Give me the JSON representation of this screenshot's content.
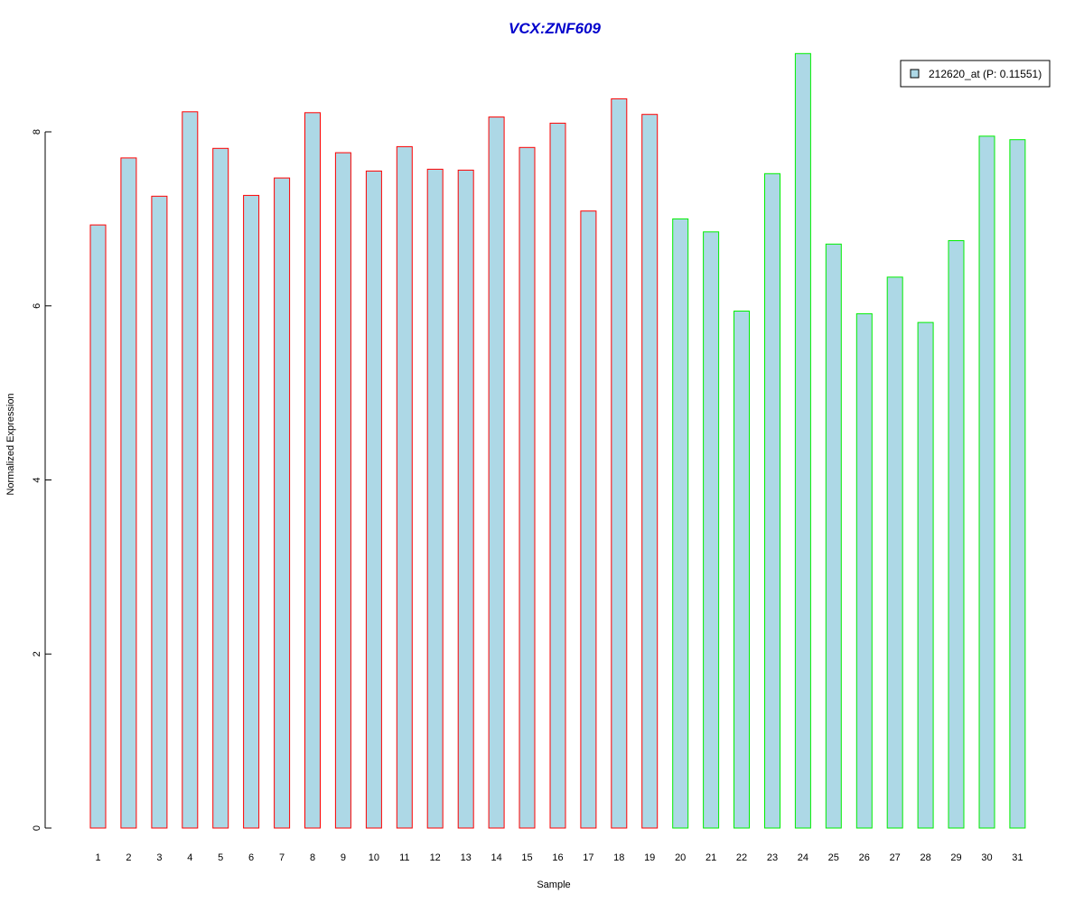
{
  "chart_data": {
    "type": "bar",
    "title": "VCX:ZNF609",
    "xlabel": "Sample",
    "ylabel": "Normalized Expression",
    "categories": [
      "1",
      "2",
      "3",
      "4",
      "5",
      "6",
      "7",
      "8",
      "9",
      "10",
      "11",
      "12",
      "13",
      "14",
      "15",
      "16",
      "17",
      "18",
      "19",
      "20",
      "21",
      "22",
      "23",
      "24",
      "25",
      "26",
      "27",
      "28",
      "29",
      "30",
      "31"
    ],
    "series": [
      {
        "name": "212620_at (P: 0.11551)",
        "values": [
          6.93,
          7.7,
          7.26,
          8.23,
          7.81,
          7.27,
          7.47,
          8.22,
          7.76,
          7.55,
          7.83,
          7.57,
          7.56,
          8.17,
          7.82,
          8.1,
          7.09,
          8.38,
          8.2,
          7.0,
          6.85,
          5.94,
          7.52,
          8.9,
          6.71,
          5.91,
          6.33,
          5.81,
          6.75,
          7.95,
          7.91
        ]
      }
    ],
    "yticks": [
      0,
      2,
      4,
      6,
      8
    ],
    "ylim": [
      0,
      8.9
    ],
    "legend_position": "top-right",
    "grid": false,
    "colors": {
      "title": "#0000cc",
      "bar_fill": "#add8e6",
      "group1_border": "#ff0000",
      "group2_border": "#00ee00"
    },
    "group_borders": [
      "red",
      "red",
      "red",
      "red",
      "red",
      "red",
      "red",
      "red",
      "red",
      "red",
      "red",
      "red",
      "red",
      "red",
      "red",
      "red",
      "red",
      "red",
      "red",
      "green",
      "green",
      "green",
      "green",
      "green",
      "green",
      "green",
      "green",
      "green",
      "green",
      "green",
      "green"
    ]
  }
}
